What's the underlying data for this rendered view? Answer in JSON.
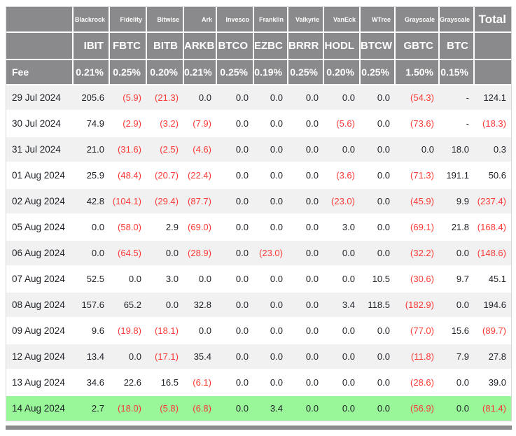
{
  "colors": {
    "header_bg": "#8a8a8c",
    "header_text": "#ffffff",
    "row_stripe": "#f1f1f2",
    "row_plain": "#ffffff",
    "row_highlight_green": "#99f699",
    "negative_red": "#fb3a36",
    "body_text": "#1e2127"
  },
  "chart_data": {
    "type": "table",
    "fee_label": "Fee",
    "total_label": "Total",
    "issuers": [
      "Blackrock",
      "Fidelity",
      "Bitwise",
      "Ark",
      "Invesco",
      "Franklin",
      "Valkyrie",
      "VanEck",
      "WTree",
      "Grayscale",
      "Grayscale"
    ],
    "tickers": [
      "IBIT",
      "FBTC",
      "BITB",
      "ARKB",
      "BTCO",
      "EZBC",
      "BRRR",
      "HODL",
      "BTCW",
      "GBTC",
      "BTC"
    ],
    "fees": [
      "0.21%",
      "0.25%",
      "0.20%",
      "0.21%",
      "0.25%",
      "0.19%",
      "0.25%",
      "0.20%",
      "0.25%",
      "1.50%",
      "0.15%"
    ],
    "rows": [
      {
        "date": "29 Jul 2024",
        "values": [
          "205.6",
          "(5.9)",
          "(21.3)",
          "0.0",
          "0.0",
          "0.0",
          "0.0",
          "0.0",
          "0.0",
          "(54.3)",
          "-"
        ],
        "total": "124.1",
        "highlight": false
      },
      {
        "date": "30 Jul 2024",
        "values": [
          "74.9",
          "(2.9)",
          "(3.2)",
          "(7.9)",
          "0.0",
          "0.0",
          "0.0",
          "(5.6)",
          "0.0",
          "(73.6)",
          "-"
        ],
        "total": "(18.3)",
        "highlight": false
      },
      {
        "date": "31 Jul 2024",
        "values": [
          "21.0",
          "(31.6)",
          "(2.5)",
          "(4.6)",
          "0.0",
          "0.0",
          "0.0",
          "0.0",
          "0.0",
          "0.0",
          "18.0"
        ],
        "total": "0.3",
        "highlight": false
      },
      {
        "date": "01 Aug 2024",
        "values": [
          "25.9",
          "(48.4)",
          "(20.7)",
          "(22.4)",
          "0.0",
          "0.0",
          "0.0",
          "(3.6)",
          "0.0",
          "(71.3)",
          "191.1"
        ],
        "total": "50.6",
        "highlight": false
      },
      {
        "date": "02 Aug 2024",
        "values": [
          "42.8",
          "(104.1)",
          "(29.4)",
          "(87.7)",
          "0.0",
          "0.0",
          "0.0",
          "(23.0)",
          "0.0",
          "(45.9)",
          "9.9"
        ],
        "total": "(237.4)",
        "highlight": false
      },
      {
        "date": "05 Aug 2024",
        "values": [
          "0.0",
          "(58.0)",
          "2.9",
          "(69.0)",
          "0.0",
          "0.0",
          "0.0",
          "3.0",
          "0.0",
          "(69.1)",
          "21.8"
        ],
        "total": "(168.4)",
        "highlight": false
      },
      {
        "date": "06 Aug 2024",
        "values": [
          "0.0",
          "(64.5)",
          "0.0",
          "(28.9)",
          "0.0",
          "(23.0)",
          "0.0",
          "0.0",
          "0.0",
          "(32.2)",
          "0.0"
        ],
        "total": "(148.6)",
        "highlight": false
      },
      {
        "date": "07 Aug 2024",
        "values": [
          "52.5",
          "0.0",
          "3.0",
          "0.0",
          "0.0",
          "0.0",
          "0.0",
          "0.0",
          "10.5",
          "(30.6)",
          "9.7"
        ],
        "total": "45.1",
        "highlight": false
      },
      {
        "date": "08 Aug 2024",
        "values": [
          "157.6",
          "65.2",
          "0.0",
          "32.8",
          "0.0",
          "0.0",
          "0.0",
          "3.4",
          "118.5",
          "(182.9)",
          "0.0"
        ],
        "total": "194.6",
        "highlight": false
      },
      {
        "date": "09 Aug 2024",
        "values": [
          "9.6",
          "(19.8)",
          "(18.1)",
          "0.0",
          "0.0",
          "0.0",
          "0.0",
          "0.0",
          "0.0",
          "(77.0)",
          "15.6"
        ],
        "total": "(89.7)",
        "highlight": false
      },
      {
        "date": "12 Aug 2024",
        "values": [
          "13.4",
          "0.0",
          "(17.1)",
          "35.4",
          "0.0",
          "0.0",
          "0.0",
          "0.0",
          "0.0",
          "(11.8)",
          "7.9"
        ],
        "total": "27.8",
        "highlight": false
      },
      {
        "date": "13 Aug 2024",
        "values": [
          "34.6",
          "22.6",
          "16.5",
          "(6.1)",
          "0.0",
          "0.0",
          "0.0",
          "0.0",
          "0.0",
          "(28.6)",
          "0.0"
        ],
        "total": "39.0",
        "highlight": false
      },
      {
        "date": "14 Aug 2024",
        "values": [
          "2.7",
          "(18.0)",
          "(5.8)",
          "(6.8)",
          "0.0",
          "3.4",
          "0.0",
          "0.0",
          "0.0",
          "(56.9)",
          "0.0"
        ],
        "total": "(81.4)",
        "highlight": true
      }
    ]
  }
}
